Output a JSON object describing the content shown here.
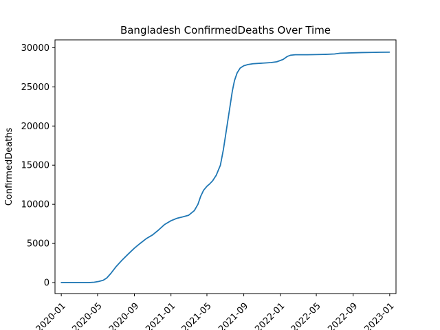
{
  "chart_data": {
    "type": "line",
    "title": "Bangladesh  ConfirmedDeaths Over Time",
    "xlabel": "",
    "ylabel": "ConfirmedDeaths",
    "x_ticks": [
      "2020-01",
      "2020-05",
      "2020-09",
      "2021-01",
      "2021-05",
      "2021-09",
      "2022-01",
      "2022-05",
      "2022-09",
      "2023-01"
    ],
    "y_ticks": [
      0,
      5000,
      10000,
      15000,
      20000,
      25000,
      30000
    ],
    "xlim": [
      "2019-12-11",
      "2023-01-22"
    ],
    "ylim": [
      -1400,
      31000
    ],
    "grid": false,
    "series": [
      {
        "color": "#1f77b4",
        "x": [
          "2020-01-01",
          "2020-02-01",
          "2020-03-15",
          "2020-04-01",
          "2020-04-20",
          "2020-05-05",
          "2020-05-20",
          "2020-06-01",
          "2020-06-15",
          "2020-07-01",
          "2020-07-20",
          "2020-08-10",
          "2020-09-01",
          "2020-09-20",
          "2020-10-10",
          "2020-11-01",
          "2020-11-20",
          "2020-12-10",
          "2021-01-01",
          "2021-01-20",
          "2021-02-10",
          "2021-03-01",
          "2021-03-20",
          "2021-04-01",
          "2021-04-10",
          "2021-04-20",
          "2021-05-01",
          "2021-05-10",
          "2021-05-20",
          "2021-06-01",
          "2021-06-15",
          "2021-06-25",
          "2021-07-05",
          "2021-07-15",
          "2021-07-25",
          "2021-08-01",
          "2021-08-10",
          "2021-08-20",
          "2021-09-01",
          "2021-09-15",
          "2021-10-01",
          "2021-10-20",
          "2021-11-10",
          "2021-12-01",
          "2021-12-20",
          "2022-01-10",
          "2022-01-25",
          "2022-02-05",
          "2022-02-20",
          "2022-03-10",
          "2022-04-01",
          "2022-05-01",
          "2022-06-01",
          "2022-07-01",
          "2022-07-20",
          "2022-08-10",
          "2022-09-01",
          "2022-10-01",
          "2022-11-01",
          "2022-12-01",
          "2022-12-31"
        ],
        "y": [
          0,
          0,
          0,
          0,
          50,
          150,
          300,
          600,
          1200,
          2000,
          2800,
          3600,
          4400,
          5000,
          5600,
          6100,
          6700,
          7400,
          7900,
          8200,
          8400,
          8600,
          9200,
          10000,
          11000,
          11800,
          12300,
          12600,
          13000,
          13700,
          15000,
          17000,
          19500,
          22000,
          24500,
          25800,
          26800,
          27400,
          27700,
          27850,
          27950,
          28000,
          28050,
          28100,
          28200,
          28500,
          28900,
          29050,
          29100,
          29100,
          29100,
          29120,
          29150,
          29200,
          29300,
          29320,
          29350,
          29380,
          29400,
          29420,
          29430
        ]
      }
    ]
  }
}
